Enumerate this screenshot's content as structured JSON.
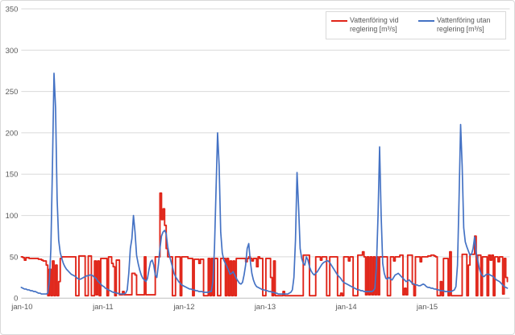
{
  "chart": {
    "background": "#ffffff",
    "border_color": "#d9d9d9",
    "gridline_color": "#d9d9d9",
    "axis_color": "#bfbfbf",
    "label_color": "#595959"
  },
  "chart_data": {
    "type": "line",
    "title": "",
    "xlabel": "",
    "ylabel": "",
    "ylim": [
      0,
      350
    ],
    "y_ticks": [
      0,
      50,
      100,
      150,
      200,
      250,
      300,
      350
    ],
    "grid": "horizontal",
    "legend_position": "top-right",
    "x_unit": "weeks from jan 2010, weekly samples",
    "categories": [
      "jan-10",
      "jan-11",
      "jan-12",
      "jan-13",
      "jan-14",
      "jan-15"
    ],
    "category_week_positions": [
      0,
      52,
      104,
      156,
      208,
      260
    ],
    "series": [
      {
        "name": "Vattenföring vid reglering [m³/s]",
        "color": "#e02519",
        "style": "step",
        "values": [
          50,
          49,
          46,
          49,
          49,
          48,
          48,
          48,
          48,
          48,
          48,
          47,
          47,
          46,
          45,
          45,
          40,
          3,
          35,
          3,
          45,
          3,
          40,
          3,
          20,
          48,
          50,
          50,
          50,
          50,
          50,
          50,
          50,
          50,
          50,
          3,
          3,
          51,
          51,
          51,
          51,
          3,
          3,
          51,
          51,
          3,
          3,
          45,
          4,
          45,
          3,
          48,
          48,
          48,
          48,
          3,
          50,
          50,
          42,
          38,
          3,
          46,
          46,
          4,
          4,
          8,
          4,
          4,
          4,
          4,
          4,
          30,
          30,
          28,
          4,
          4,
          4,
          4,
          4,
          50,
          4,
          4,
          4,
          4,
          4,
          4,
          50,
          50,
          50,
          127,
          95,
          108,
          88,
          60,
          50,
          50,
          50,
          3,
          3,
          50,
          50,
          50,
          3,
          50,
          50,
          50,
          50,
          48,
          48,
          48,
          3,
          47,
          47,
          47,
          42,
          47,
          47,
          3,
          3,
          3,
          48,
          3,
          48,
          3,
          48,
          48,
          3,
          3,
          48,
          48,
          48,
          3,
          48,
          3,
          45,
          3,
          45,
          3,
          48,
          48,
          48,
          48,
          48,
          48,
          44,
          48,
          50,
          48,
          45,
          48,
          48,
          38,
          50,
          48,
          48,
          3,
          3,
          48,
          48,
          48,
          25,
          3,
          45,
          3,
          3,
          3,
          3,
          3,
          8,
          3,
          3,
          3,
          3,
          3,
          3,
          3,
          3,
          3,
          3,
          3,
          3,
          52,
          52,
          52,
          52,
          3,
          3,
          3,
          3,
          50,
          50,
          50,
          46,
          50,
          50,
          50,
          3,
          3,
          50,
          50,
          50,
          50,
          50,
          3,
          3,
          6,
          3,
          50,
          50,
          50,
          45,
          50,
          50,
          3,
          3,
          3,
          52,
          52,
          52,
          56,
          50,
          4,
          50,
          4,
          50,
          4,
          50,
          4,
          50,
          4,
          50,
          50,
          50,
          50,
          50,
          3,
          3,
          50,
          50,
          45,
          50,
          50,
          50,
          52,
          52,
          4,
          12,
          4,
          52,
          52,
          52,
          17,
          3,
          50,
          50,
          50,
          44,
          50,
          50,
          50,
          50,
          51,
          51,
          52,
          52,
          51,
          50,
          3,
          3,
          20,
          3,
          48,
          48,
          48,
          3,
          56,
          3,
          3,
          3,
          3,
          3,
          3,
          3,
          53,
          53,
          53,
          3,
          40,
          53,
          53,
          53,
          75,
          3,
          52,
          52,
          3,
          50,
          50,
          50,
          3,
          52,
          46,
          52,
          3,
          50,
          50,
          44,
          50,
          50,
          5,
          48,
          25,
          20
        ]
      },
      {
        "name": "Vattenföring utan reglering [m³/s]",
        "color": "#4472c4",
        "style": "linear",
        "values": [
          13,
          12,
          11,
          11,
          10,
          10,
          9,
          9,
          8,
          8,
          7,
          6,
          6,
          5,
          5,
          5,
          5,
          6,
          20,
          60,
          160,
          272,
          230,
          120,
          70,
          55,
          48,
          42,
          38,
          35,
          33,
          31,
          29,
          28,
          27,
          26,
          24,
          23,
          23,
          24,
          25,
          26,
          27,
          27,
          28,
          28,
          27,
          25,
          24,
          21,
          19,
          17,
          15,
          14,
          12,
          11,
          10,
          9,
          8,
          7,
          7,
          6,
          6,
          5,
          5,
          5,
          5,
          6,
          10,
          30,
          60,
          72,
          100,
          80,
          52,
          42,
          34,
          28,
          24,
          22,
          20,
          24,
          35,
          44,
          46,
          40,
          28,
          25,
          40,
          60,
          75,
          80,
          82,
          78,
          62,
          52,
          45,
          38,
          30,
          26,
          23,
          20,
          18,
          16,
          15,
          14,
          13,
          12,
          11,
          11,
          10,
          10,
          9,
          9,
          8,
          8,
          8,
          7,
          7,
          7,
          7,
          8,
          8,
          20,
          60,
          130,
          200,
          160,
          80,
          55,
          46,
          42,
          38,
          34,
          29,
          30,
          32,
          28,
          24,
          21,
          18,
          17,
          19,
          28,
          40,
          60,
          66,
          45,
          30,
          22,
          17,
          14,
          13,
          12,
          11,
          10,
          10,
          9,
          9,
          8,
          8,
          7,
          7,
          6,
          6,
          5,
          5,
          5,
          5,
          5,
          5,
          5,
          6,
          7,
          10,
          25,
          70,
          152,
          110,
          60,
          48,
          42,
          40,
          50,
          46,
          38,
          33,
          30,
          28,
          30,
          32,
          35,
          38,
          41,
          43,
          44,
          45,
          45,
          43,
          40,
          37,
          34,
          31,
          28,
          26,
          24,
          21,
          19,
          18,
          17,
          16,
          15,
          14,
          13,
          12,
          11,
          10,
          10,
          9,
          9,
          8,
          8,
          8,
          8,
          8,
          8,
          9,
          12,
          40,
          100,
          183,
          100,
          42,
          30,
          24,
          23,
          25,
          23,
          22,
          25,
          28,
          29,
          30,
          28,
          26,
          24,
          22,
          20,
          21,
          22,
          20,
          18,
          17,
          16,
          16,
          15,
          15,
          16,
          17,
          16,
          14,
          13,
          13,
          12,
          12,
          11,
          11,
          10,
          10,
          9,
          9,
          9,
          8,
          8,
          8,
          8,
          8,
          9,
          10,
          14,
          40,
          120,
          210,
          160,
          85,
          68,
          62,
          57,
          52,
          53,
          60,
          74,
          55,
          46,
          36,
          30,
          27,
          26,
          28,
          29,
          29,
          28,
          27,
          26,
          24,
          22,
          21,
          20,
          18,
          16,
          14,
          13,
          12
        ]
      }
    ]
  }
}
